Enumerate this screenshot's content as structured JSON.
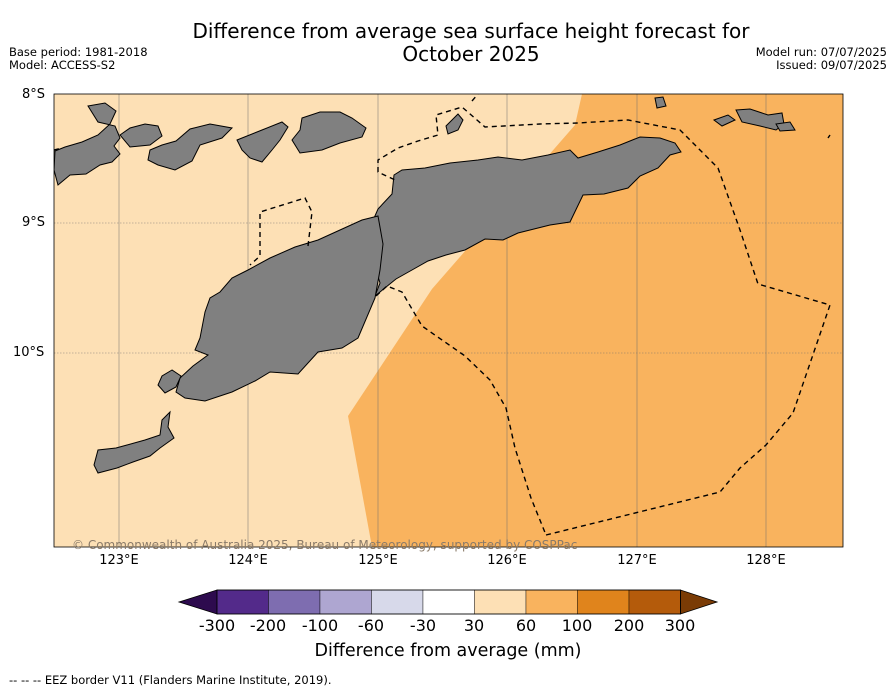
{
  "header": {
    "title_line1": "Difference from average sea surface height forecast for",
    "title_line2": "October 2025",
    "base_period": "Base period: 1981-2018",
    "model": "Model: ACCESS-S2",
    "model_run": "Model run: 07/07/2025",
    "issued": "Issued: 09/07/2025"
  },
  "map": {
    "lat_labels": [
      "8°S",
      "9°S",
      "10°S"
    ],
    "lon_labels": [
      "123°E",
      "124°E",
      "125°E",
      "126°E",
      "127°E",
      "128°E"
    ],
    "credit": "© Commonwealth of Australia 2025, Bureau of Meteorology, supported by COSPPac",
    "land_color": "#808080",
    "band_30_60_color": "#fde0b5",
    "band_60_100_color": "#f9b35e"
  },
  "colorbar": {
    "ticks": [
      "-300",
      "-200",
      "-100",
      "-60",
      "-30",
      "30",
      "60",
      "100",
      "200",
      "300"
    ],
    "colors": [
      "#2d0b4e",
      "#532a8a",
      "#7e6db0",
      "#aea6d1",
      "#d7d9ea",
      "#ffffff",
      "#fde0b5",
      "#f9b35e",
      "#e0841c",
      "#b45b0b",
      "#7a3b05"
    ],
    "label": "Difference from average (mm)"
  },
  "footnote": "--  --  -- EEZ border V11 (Flanders Marine Institute, 2019)."
}
